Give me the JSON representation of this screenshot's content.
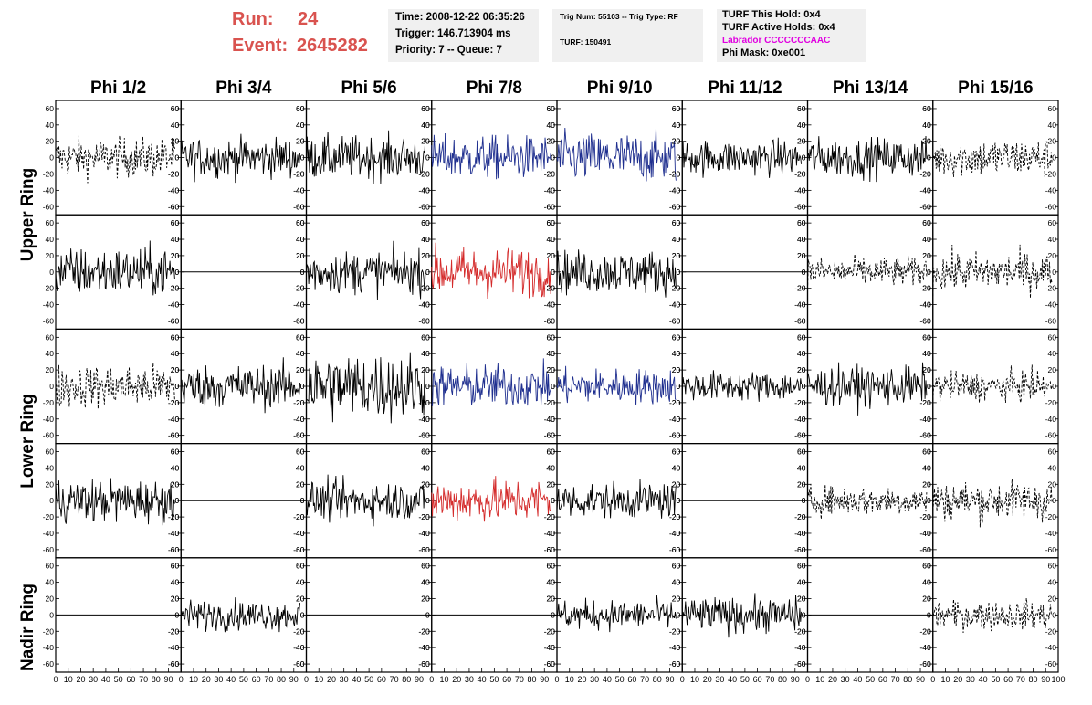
{
  "run": {
    "run_label": "Run:",
    "run_value": "24",
    "event_label": "Event:",
    "event_value": "2645282"
  },
  "info": {
    "time": "Time: 2008-12-22 06:35:26",
    "trigger": "Trigger: 146.713904 ms",
    "priority": "Priority: 7 -- Queue: 7"
  },
  "trig": {
    "trignum": "Trig Num: 55103 -- Trig Type: RF",
    "turf": "TURF: 150491"
  },
  "turf": {
    "hold": "TURF This Hold: 0x4",
    "active": "TURF Active Holds: 0x4",
    "labrador": "Labrador CCCCCCCAAC",
    "phimask": "Phi Mask: 0xe001"
  },
  "columns": [
    "Phi 1/2",
    "Phi 3/4",
    "Phi 5/6",
    "Phi 7/8",
    "Phi 9/10",
    "Phi 11/12",
    "Phi 13/14",
    "Phi 15/16"
  ],
  "rings": [
    "Upper Ring",
    "Lower Ring",
    "Nadir Ring"
  ],
  "colors": {
    "black": "#000000",
    "blue": "#1f2f8f",
    "red": "#d42a2a",
    "labrador": "#e000e0",
    "run": "#d9534f"
  },
  "y_ticks": [
    "60",
    "40",
    "20",
    "0",
    "-20",
    "-40",
    "-60"
  ],
  "x_ticks": [
    "0",
    "10",
    "20",
    "30",
    "40",
    "50",
    "60",
    "70",
    "80",
    "90",
    "100"
  ],
  "chart_data": {
    "type": "line",
    "x_range": [
      0,
      100
    ],
    "y_range": [
      -70,
      70
    ],
    "grid_rows": [
      "Upper Ring (1)",
      "Upper Ring (2)",
      "Lower Ring (1)",
      "Lower Ring (2)",
      "Nadir Ring"
    ],
    "panels": [
      [
        "dashed",
        "solid",
        "solid",
        "blue",
        "blue",
        "solid",
        "solid",
        "dashed"
      ],
      [
        "solid",
        "flat",
        "solid",
        "red",
        "solid",
        "flat",
        "dashed",
        "dashed"
      ],
      [
        "dashed",
        "solid",
        "solid",
        "blue",
        "blue",
        "solid",
        "solid",
        "dashed"
      ],
      [
        "solid",
        "flat",
        "solid",
        "red",
        "solid",
        "flat",
        "dashed",
        "dashed"
      ],
      [
        "flat",
        "solid",
        "flat",
        "flat",
        "solid",
        "solid",
        "flat",
        "dashed"
      ]
    ],
    "amplitudes": [
      [
        20,
        20,
        22,
        22,
        25,
        18,
        20,
        20
      ],
      [
        25,
        0,
        22,
        25,
        22,
        0,
        15,
        20
      ],
      [
        22,
        22,
        35,
        22,
        18,
        15,
        20,
        15
      ],
      [
        22,
        0,
        20,
        22,
        18,
        0,
        15,
        20
      ],
      [
        0,
        15,
        0,
        0,
        15,
        18,
        0,
        15
      ]
    ]
  }
}
